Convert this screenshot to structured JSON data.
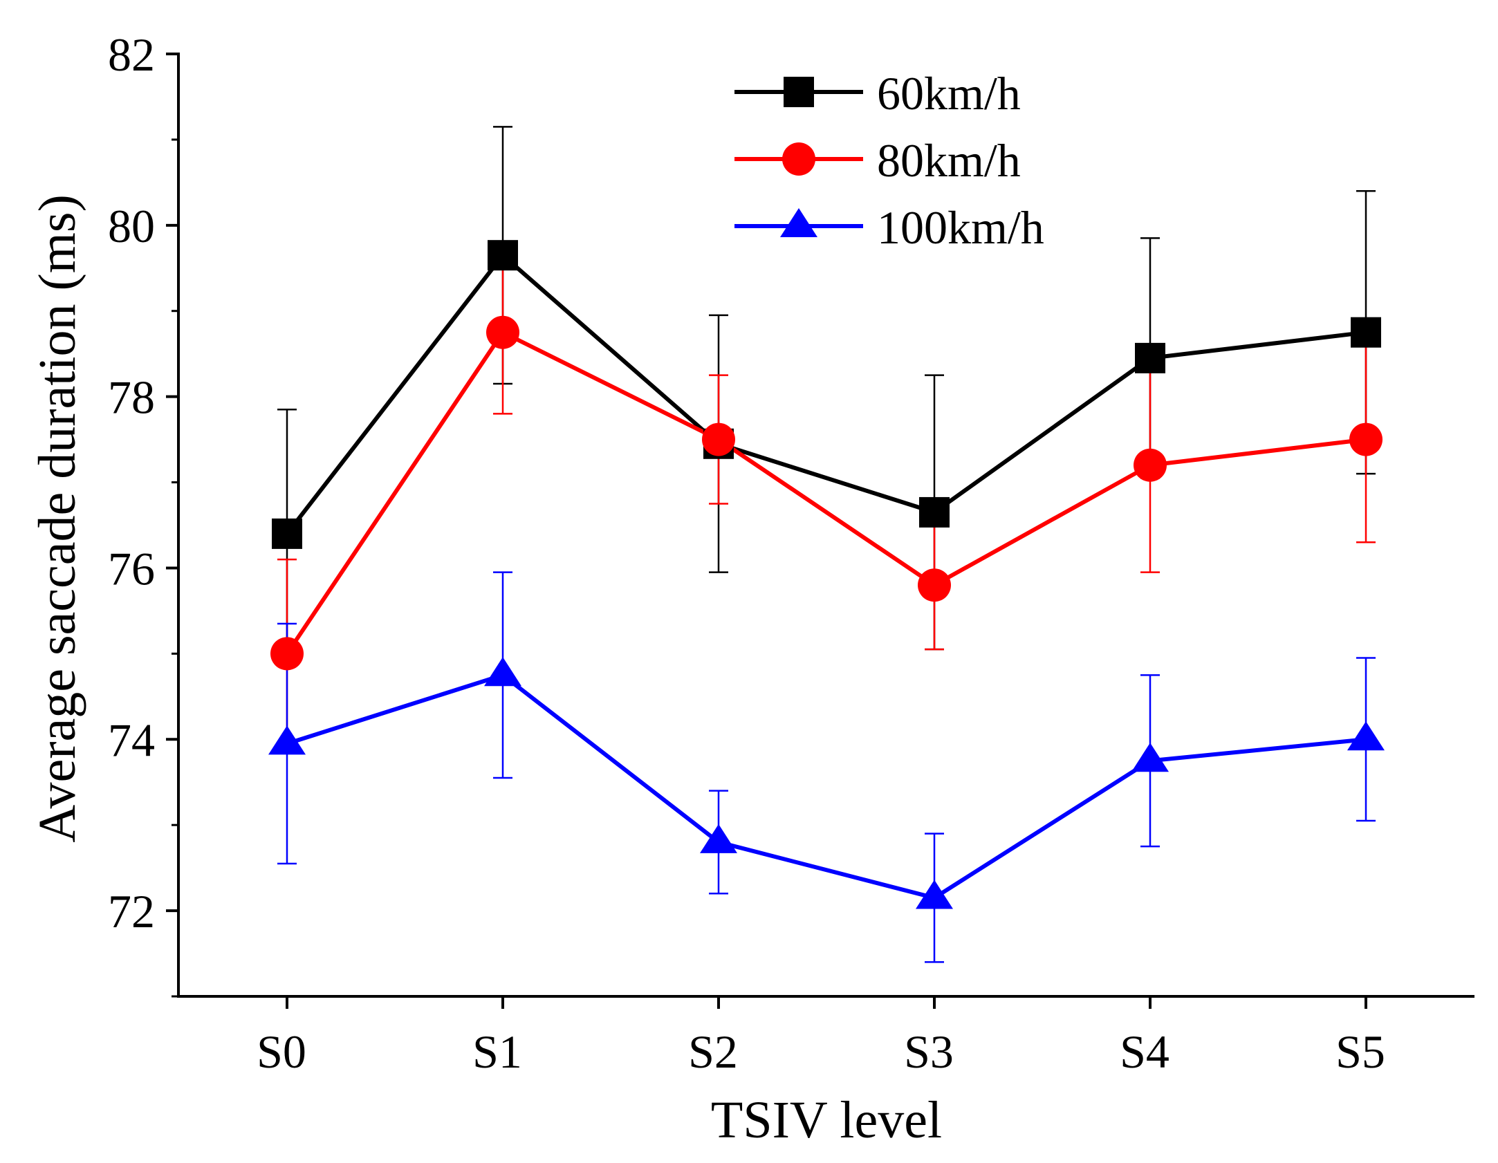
{
  "chart_data": {
    "type": "line",
    "title": "",
    "xlabel": "TSIV level",
    "ylabel": "Average saccade duration (ms)",
    "categories": [
      "S0",
      "S1",
      "S2",
      "S3",
      "S4",
      "S5"
    ],
    "ylim": [
      71,
      82
    ],
    "yticks": [
      72,
      74,
      76,
      78,
      80,
      82
    ],
    "ytick_labels": [
      "72",
      "74",
      "76",
      "78",
      "80",
      "82"
    ],
    "grid": false,
    "legend_position": "top-center",
    "series": [
      {
        "name": "60km/h",
        "color": "#000000",
        "marker": "square",
        "values": [
          76.4,
          79.65,
          77.45,
          76.65,
          78.45,
          78.75
        ],
        "err_plus": [
          1.45,
          1.5,
          1.5,
          1.6,
          1.4,
          1.65
        ],
        "err_minus": [
          1.45,
          1.5,
          1.5,
          1.6,
          1.4,
          1.65
        ]
      },
      {
        "name": "80km/h",
        "color": "#ff0000",
        "marker": "circle",
        "values": [
          75.0,
          78.75,
          77.5,
          75.8,
          77.2,
          77.5
        ],
        "err_plus": [
          1.1,
          0.95,
          0.75,
          0.75,
          1.25,
          1.2
        ],
        "err_minus": [
          1.1,
          0.95,
          0.75,
          0.75,
          1.25,
          1.2
        ]
      },
      {
        "name": "100km/h",
        "color": "#0000ff",
        "marker": "triangle",
        "values": [
          73.95,
          74.75,
          72.8,
          72.15,
          73.75,
          74.0
        ],
        "err_plus": [
          1.4,
          1.2,
          0.6,
          0.75,
          1.0,
          0.95
        ],
        "err_minus": [
          1.4,
          1.2,
          0.6,
          0.75,
          1.0,
          0.95
        ]
      }
    ]
  }
}
